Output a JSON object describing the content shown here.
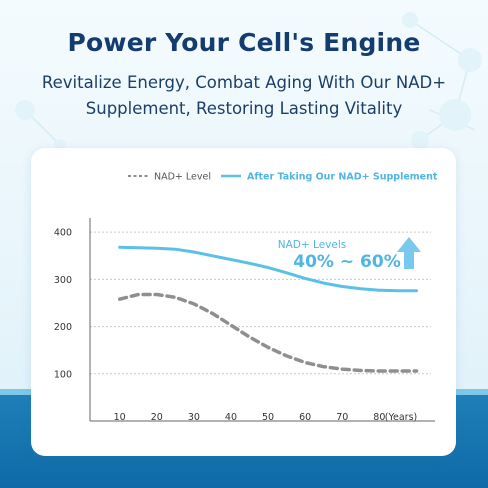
{
  "header": {
    "title": "Power Your Cell's Engine",
    "subtitle": "Revitalize Energy, Combat Aging With Our NAD+ Supplement, Restoring Lasting Vitality"
  },
  "colors": {
    "title": "#143c6e",
    "supplement_line": "#5bc0e8",
    "nad_line": "#8f8f8f",
    "band": "#1a74af"
  },
  "callout": {
    "label": "NAD+ Levels",
    "value": "40% ~ 60%",
    "icon": "arrow-up-icon"
  },
  "chart_data": {
    "type": "line",
    "x_unit_label": "(Years)",
    "x_ticks": [
      10,
      20,
      30,
      40,
      50,
      60,
      70,
      80
    ],
    "y_ticks": [
      100,
      200,
      300,
      400
    ],
    "xlim": [
      10,
      90
    ],
    "ylim": [
      60,
      420
    ],
    "grid": "horizontal dashed",
    "legend_position": "top",
    "series": [
      {
        "name": "NAD+ Level",
        "style": "dashed",
        "color": "#8f8f8f",
        "x": [
          10,
          15,
          20,
          25,
          30,
          35,
          40,
          45,
          50,
          55,
          60,
          65,
          70,
          75,
          80,
          85,
          90
        ],
        "y": [
          258,
          268,
          268,
          262,
          248,
          228,
          203,
          178,
          156,
          138,
          124,
          115,
          110,
          107,
          106,
          106,
          106
        ]
      },
      {
        "name": "After Taking Our NAD+ Supplement",
        "style": "solid",
        "color": "#5bc0e8",
        "x": [
          10,
          15,
          20,
          25,
          30,
          35,
          40,
          45,
          50,
          55,
          60,
          65,
          70,
          75,
          80,
          85,
          90
        ],
        "y": [
          368,
          367,
          366,
          364,
          358,
          350,
          342,
          334,
          325,
          314,
          302,
          292,
          285,
          280,
          277,
          276,
          276
        ]
      }
    ]
  }
}
